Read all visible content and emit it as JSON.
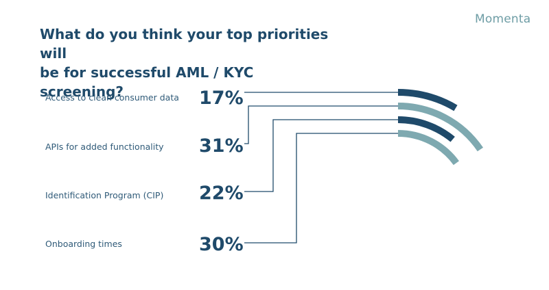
{
  "brand": {
    "name": "Momenta",
    "color": "#6e9da5"
  },
  "title_line1": "What do you think your top priorities will",
  "title_line2": "be for successful AML / KYC screening?",
  "chart_data": {
    "type": "bar",
    "title": "What do you think your top priorities will be for successful AML / KYC screening?",
    "categories": [
      "Access to clean consumer data",
      "APIs for added functionality",
      "Identification Program (CIP)",
      "Onboarding times"
    ],
    "values": [
      17,
      31,
      22,
      30
    ],
    "value_labels": [
      "17%",
      "31%",
      "22%",
      "30%"
    ],
    "unit": "%",
    "colors": [
      "#1f4a6a",
      "#7ea9b0",
      "#1f4a6a",
      "#7ea9b0"
    ],
    "style": "radial arcs"
  }
}
